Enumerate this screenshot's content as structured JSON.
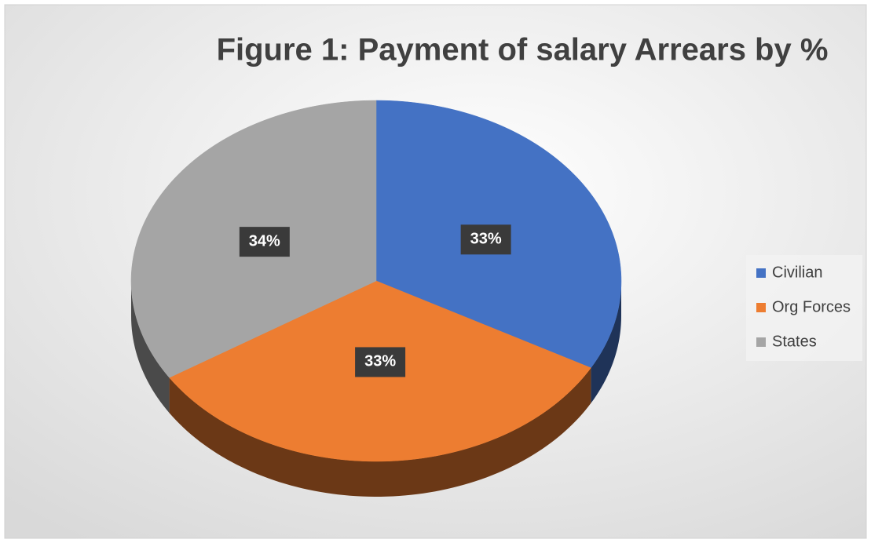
{
  "chart_data": {
    "type": "pie",
    "title": "Figure 1: Payment of salary Arrears by %",
    "categories": [
      "Civilian",
      "Org Forces",
      "States"
    ],
    "values": [
      33,
      33,
      34
    ],
    "value_labels": [
      "33%",
      "33%",
      "34%"
    ],
    "colors": [
      "#4472c4",
      "#ed7d31",
      "#a5a5a5"
    ],
    "legend": "right"
  }
}
